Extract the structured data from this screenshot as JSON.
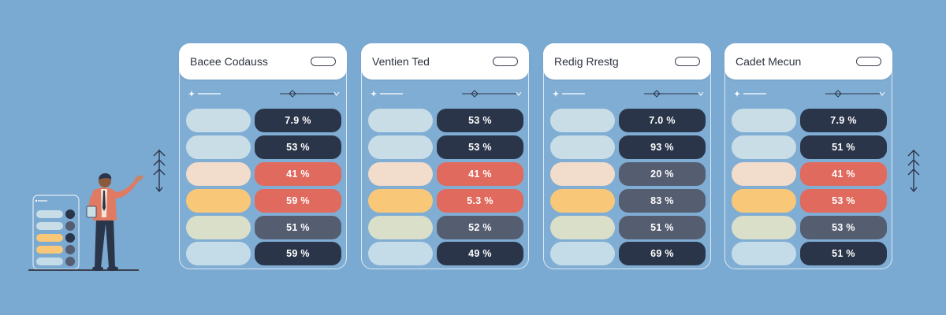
{
  "colors": {
    "background": "#7aa9d2",
    "dark": "#2b3549",
    "slate": "#555d70",
    "coral": "#e06a5d",
    "pale_blue": "#c9dde6",
    "peach": "#f2dccb",
    "yellow": "#f8c878",
    "sage": "#d9dfc9",
    "light_blue": "#c4dbe8"
  },
  "cards": [
    {
      "title": "Bacee Codauss",
      "rows": [
        {
          "value": "7.9 %",
          "pill": "#c9dde6",
          "box": "#2b3549"
        },
        {
          "value": "53 %",
          "pill": "#c9dde6",
          "box": "#2b3549"
        },
        {
          "value": "41 %",
          "pill": "#f2dccb",
          "box": "#e06a5d"
        },
        {
          "value": "59 %",
          "pill": "#f8c878",
          "box": "#e06a5d"
        },
        {
          "value": "51 %",
          "pill": "#d9dfc9",
          "box": "#555d70"
        },
        {
          "value": "59 %",
          "pill": "#c4dbe8",
          "box": "#2b3549"
        }
      ]
    },
    {
      "title": "Ventien Ted",
      "rows": [
        {
          "value": "53 %",
          "pill": "#c9dde6",
          "box": "#2b3549"
        },
        {
          "value": "53 %",
          "pill": "#c9dde6",
          "box": "#2b3549"
        },
        {
          "value": "41 %",
          "pill": "#f2dccb",
          "box": "#e06a5d"
        },
        {
          "value": "5.3 %",
          "pill": "#f8c878",
          "box": "#e06a5d"
        },
        {
          "value": "52 %",
          "pill": "#d9dfc9",
          "box": "#555d70"
        },
        {
          "value": "49 %",
          "pill": "#c4dbe8",
          "box": "#2b3549"
        }
      ]
    },
    {
      "title": "Redig Rrestg",
      "rows": [
        {
          "value": "7.0 %",
          "pill": "#c9dde6",
          "box": "#2b3549"
        },
        {
          "value": "93 %",
          "pill": "#c9dde6",
          "box": "#2b3549"
        },
        {
          "value": "20 %",
          "pill": "#f2dccb",
          "box": "#555d70"
        },
        {
          "value": "83 %",
          "pill": "#f8c878",
          "box": "#555d70"
        },
        {
          "value": "51 %",
          "pill": "#d9dfc9",
          "box": "#555d70"
        },
        {
          "value": "69 %",
          "pill": "#c4dbe8",
          "box": "#2b3549"
        }
      ]
    },
    {
      "title": "Cadet Mecun",
      "rows": [
        {
          "value": "7.9 %",
          "pill": "#c9dde6",
          "box": "#2b3549"
        },
        {
          "value": "51 %",
          "pill": "#c9dde6",
          "box": "#2b3549"
        },
        {
          "value": "41 %",
          "pill": "#f2dccb",
          "box": "#e06a5d"
        },
        {
          "value": "53 %",
          "pill": "#f8c878",
          "box": "#e06a5d"
        },
        {
          "value": "53 %",
          "pill": "#d9dfc9",
          "box": "#555d70"
        },
        {
          "value": "51 %",
          "pill": "#c4dbe8",
          "box": "#2b3549"
        }
      ]
    }
  ],
  "decorations": {
    "phone_pills": [
      "#c9dde6",
      "#c9dde6",
      "#f8c878",
      "#f8c878",
      "#c4dbe8",
      "#555d70"
    ],
    "phone_dots": [
      "#2b3549",
      "#555d70",
      "#2b3549",
      "#555d70",
      "#555d70",
      "#555d70"
    ]
  }
}
